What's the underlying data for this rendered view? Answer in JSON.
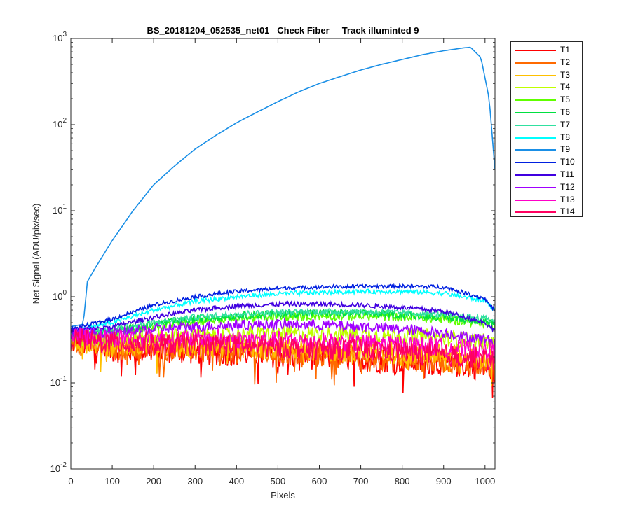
{
  "chart_data": {
    "type": "line",
    "title": "BS_20181204_052535_net01   Check Fiber     Track illuminted 9",
    "xlabel": "Pixels",
    "ylabel": "Net Signal (ADU/pix/sec)",
    "xlim": [
      0,
      1024
    ],
    "ylim": [
      0.01,
      1000
    ],
    "yscale": "log",
    "x_ticks": [
      "0",
      "100",
      "200",
      "300",
      "400",
      "500",
      "600",
      "700",
      "800",
      "900",
      "1000"
    ],
    "y_ticks": [
      "10-2",
      "10-1",
      "100",
      "101",
      "102",
      "103"
    ],
    "grid": false,
    "legend_position": "outside-top-right",
    "series": [
      {
        "name": "T1",
        "color": "#ff0000",
        "points": [
          [
            0,
            0.3
          ],
          [
            100,
            0.24
          ],
          [
            200,
            0.24
          ],
          [
            300,
            0.23
          ],
          [
            400,
            0.22
          ],
          [
            500,
            0.21
          ],
          [
            600,
            0.2
          ],
          [
            700,
            0.19
          ],
          [
            800,
            0.18
          ],
          [
            900,
            0.17
          ],
          [
            1000,
            0.15
          ],
          [
            1024,
            0.14
          ]
        ]
      },
      {
        "name": "T2",
        "color": "#ff6a00",
        "points": [
          [
            0,
            0.3
          ],
          [
            100,
            0.25
          ],
          [
            200,
            0.25
          ],
          [
            300,
            0.24
          ],
          [
            400,
            0.23
          ],
          [
            500,
            0.22
          ],
          [
            600,
            0.21
          ],
          [
            700,
            0.2
          ],
          [
            800,
            0.19
          ],
          [
            900,
            0.18
          ],
          [
            1000,
            0.16
          ],
          [
            1024,
            0.15
          ]
        ]
      },
      {
        "name": "T3",
        "color": "#ffc000",
        "points": [
          [
            0,
            0.31
          ],
          [
            100,
            0.27
          ],
          [
            200,
            0.27
          ],
          [
            300,
            0.26
          ],
          [
            400,
            0.25
          ],
          [
            500,
            0.25
          ],
          [
            600,
            0.24
          ],
          [
            700,
            0.23
          ],
          [
            800,
            0.22
          ],
          [
            900,
            0.21
          ],
          [
            1000,
            0.2
          ],
          [
            1024,
            0.19
          ]
        ]
      },
      {
        "name": "T4",
        "color": "#c0ff00",
        "points": [
          [
            0,
            0.33
          ],
          [
            100,
            0.32
          ],
          [
            200,
            0.34
          ],
          [
            300,
            0.35
          ],
          [
            400,
            0.36
          ],
          [
            500,
            0.37
          ],
          [
            600,
            0.37
          ],
          [
            700,
            0.36
          ],
          [
            800,
            0.35
          ],
          [
            900,
            0.33
          ],
          [
            1000,
            0.3
          ],
          [
            1024,
            0.28
          ]
        ]
      },
      {
        "name": "T5",
        "color": "#60ff00",
        "points": [
          [
            0,
            0.35
          ],
          [
            100,
            0.38
          ],
          [
            200,
            0.45
          ],
          [
            300,
            0.52
          ],
          [
            400,
            0.56
          ],
          [
            500,
            0.58
          ],
          [
            600,
            0.6
          ],
          [
            700,
            0.6
          ],
          [
            800,
            0.58
          ],
          [
            900,
            0.55
          ],
          [
            1000,
            0.5
          ],
          [
            1024,
            0.47
          ]
        ]
      },
      {
        "name": "T6",
        "color": "#00e040",
        "points": [
          [
            0,
            0.36
          ],
          [
            100,
            0.4
          ],
          [
            200,
            0.48
          ],
          [
            300,
            0.55
          ],
          [
            400,
            0.6
          ],
          [
            500,
            0.63
          ],
          [
            600,
            0.65
          ],
          [
            700,
            0.64
          ],
          [
            800,
            0.62
          ],
          [
            900,
            0.58
          ],
          [
            1000,
            0.52
          ],
          [
            1024,
            0.48
          ]
        ]
      },
      {
        "name": "T7",
        "color": "#30e0a0",
        "points": [
          [
            0,
            0.37
          ],
          [
            100,
            0.42
          ],
          [
            200,
            0.5
          ],
          [
            300,
            0.58
          ],
          [
            400,
            0.63
          ],
          [
            500,
            0.66
          ],
          [
            600,
            0.67
          ],
          [
            700,
            0.67
          ],
          [
            800,
            0.65
          ],
          [
            900,
            0.62
          ],
          [
            1000,
            0.56
          ],
          [
            1024,
            0.52
          ]
        ]
      },
      {
        "name": "T8",
        "color": "#00ffff",
        "points": [
          [
            0,
            0.4
          ],
          [
            100,
            0.5
          ],
          [
            200,
            0.7
          ],
          [
            300,
            0.88
          ],
          [
            400,
            1.0
          ],
          [
            500,
            1.08
          ],
          [
            600,
            1.12
          ],
          [
            700,
            1.15
          ],
          [
            800,
            1.15
          ],
          [
            900,
            1.1
          ],
          [
            1000,
            0.9
          ],
          [
            1024,
            0.7
          ]
        ]
      },
      {
        "name": "T9",
        "color": "#1a8fe6",
        "points": [
          [
            0,
            0.45
          ],
          [
            30,
            0.48
          ],
          [
            40,
            1.5
          ],
          [
            60,
            2.2
          ],
          [
            100,
            4.5
          ],
          [
            150,
            10
          ],
          [
            200,
            20
          ],
          [
            250,
            33
          ],
          [
            300,
            52
          ],
          [
            350,
            75
          ],
          [
            400,
            105
          ],
          [
            450,
            140
          ],
          [
            500,
            185
          ],
          [
            550,
            240
          ],
          [
            600,
            300
          ],
          [
            650,
            360
          ],
          [
            700,
            430
          ],
          [
            750,
            500
          ],
          [
            800,
            570
          ],
          [
            850,
            650
          ],
          [
            900,
            720
          ],
          [
            950,
            780
          ],
          [
            965,
            790
          ],
          [
            990,
            600
          ],
          [
            1010,
            200
          ],
          [
            1024,
            30
          ]
        ]
      },
      {
        "name": "T10",
        "color": "#0020e0",
        "points": [
          [
            0,
            0.42
          ],
          [
            100,
            0.55
          ],
          [
            200,
            0.8
          ],
          [
            300,
            1.0
          ],
          [
            400,
            1.15
          ],
          [
            500,
            1.25
          ],
          [
            600,
            1.3
          ],
          [
            700,
            1.32
          ],
          [
            800,
            1.33
          ],
          [
            900,
            1.3
          ],
          [
            1000,
            0.95
          ],
          [
            1024,
            0.68
          ]
        ]
      },
      {
        "name": "T11",
        "color": "#4000e0",
        "points": [
          [
            0,
            0.4
          ],
          [
            100,
            0.45
          ],
          [
            200,
            0.58
          ],
          [
            300,
            0.7
          ],
          [
            400,
            0.78
          ],
          [
            500,
            0.82
          ],
          [
            600,
            0.82
          ],
          [
            700,
            0.8
          ],
          [
            800,
            0.75
          ],
          [
            900,
            0.68
          ],
          [
            1000,
            0.5
          ],
          [
            1024,
            0.4
          ]
        ]
      },
      {
        "name": "T12",
        "color": "#a000ff",
        "points": [
          [
            0,
            0.38
          ],
          [
            100,
            0.38
          ],
          [
            200,
            0.42
          ],
          [
            300,
            0.45
          ],
          [
            400,
            0.47
          ],
          [
            500,
            0.48
          ],
          [
            600,
            0.47
          ],
          [
            700,
            0.45
          ],
          [
            800,
            0.42
          ],
          [
            900,
            0.38
          ],
          [
            1000,
            0.32
          ],
          [
            1024,
            0.3
          ]
        ]
      },
      {
        "name": "T13",
        "color": "#ff00c8",
        "points": [
          [
            0,
            0.35
          ],
          [
            100,
            0.33
          ],
          [
            200,
            0.33
          ],
          [
            300,
            0.33
          ],
          [
            400,
            0.32
          ],
          [
            500,
            0.31
          ],
          [
            600,
            0.3
          ],
          [
            700,
            0.29
          ],
          [
            800,
            0.28
          ],
          [
            900,
            0.26
          ],
          [
            1000,
            0.24
          ],
          [
            1024,
            0.23
          ]
        ]
      },
      {
        "name": "T14",
        "color": "#ff0060",
        "points": [
          [
            0,
            0.33
          ],
          [
            100,
            0.29
          ],
          [
            200,
            0.28
          ],
          [
            300,
            0.28
          ],
          [
            400,
            0.27
          ],
          [
            500,
            0.26
          ],
          [
            600,
            0.25
          ],
          [
            700,
            0.24
          ],
          [
            800,
            0.23
          ],
          [
            900,
            0.21
          ],
          [
            1000,
            0.19
          ],
          [
            1024,
            0.18
          ]
        ]
      }
    ]
  }
}
